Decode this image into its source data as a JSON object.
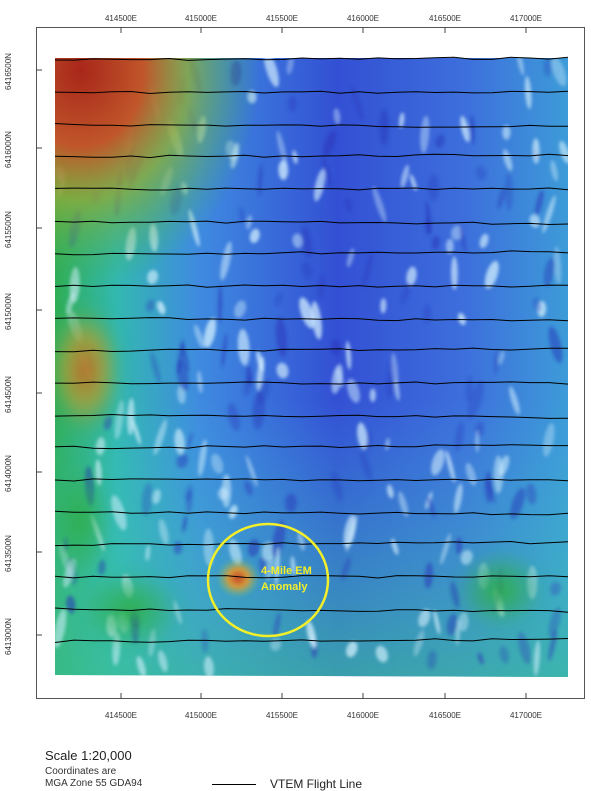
{
  "map": {
    "x_ticks": [
      "414500E",
      "415000E",
      "415500E",
      "416000E",
      "416500E",
      "417000E"
    ],
    "y_ticks": [
      "6416500N",
      "6416000N",
      "6415500N",
      "6415000N",
      "6414500N",
      "6414000N",
      "6413500N",
      "6413000N"
    ],
    "anomaly": {
      "label_line1": "4-Mile EM",
      "label_line2": "Anomaly",
      "color": "#f2ee2a"
    },
    "flight_line_count": 19
  },
  "legend": {
    "scale": "Scale 1:20,000",
    "coord_line1": "Coordinates are",
    "coord_line2": "MGA Zone 55 GDA94",
    "flight_line_label": "VTEM Flight Line"
  },
  "colors": {
    "low": "#2a3fc8",
    "mid": "#4bb6e6",
    "high_green": "#2fb060",
    "hot": "#b52f1c"
  }
}
